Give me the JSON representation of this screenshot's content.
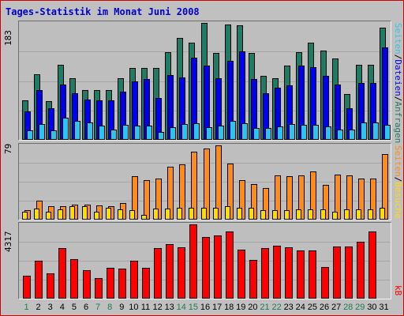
{
  "title": "Tages-Statistik im Monat Juni 2008",
  "colors": {
    "title": "#0000cc",
    "anfragen": "#1e7c64",
    "dateien": "#0000ee",
    "seiten": "#2ec4f0",
    "besuche": "#ffdd00",
    "besuche_seiten": "#ff8c1a",
    "kb": "#ff0000",
    "weekend_day": "#1e7c50",
    "weekday": "#000000"
  },
  "top_panel": {
    "max_label": "183",
    "legend": {
      "seiten": "Seiten",
      "slash1": "/",
      "dateien": "Dateien",
      "slash2": "/",
      "anfragen": "Anfragen"
    }
  },
  "mid_panel": {
    "max_label": "79",
    "legend": {
      "seiten": "Seiten",
      "slash": "/",
      "besuche": "Besuche"
    }
  },
  "bottom_panel": {
    "max_label": "4317",
    "legend": {
      "kb": "kB"
    }
  },
  "days": [
    "1",
    "2",
    "3",
    "4",
    "5",
    "6",
    "7",
    "8",
    "9",
    "10",
    "11",
    "12",
    "13",
    "14",
    "15",
    "16",
    "17",
    "18",
    "19",
    "20",
    "21",
    "22",
    "23",
    "24",
    "25",
    "26",
    "27",
    "28",
    "29",
    "30",
    "31"
  ],
  "weekend_days": [
    1,
    7,
    8,
    14,
    15,
    21,
    22,
    28,
    29
  ],
  "chart_data": [
    {
      "type": "bar",
      "ylim": [
        0,
        183
      ],
      "categories": [
        "1",
        "2",
        "3",
        "4",
        "5",
        "6",
        "7",
        "8",
        "9",
        "10",
        "11",
        "12",
        "13",
        "14",
        "15",
        "16",
        "17",
        "18",
        "19",
        "20",
        "21",
        "22",
        "23",
        "24",
        "25",
        "26",
        "27",
        "28",
        "29",
        "30",
        "31"
      ],
      "series": [
        {
          "name": "Anfragen",
          "values": [
            62,
            103,
            60,
            118,
            97,
            78,
            78,
            78,
            97,
            113,
            113,
            113,
            137,
            160,
            152,
            183,
            136,
            180,
            179,
            136,
            100,
            97,
            116,
            137,
            152,
            140,
            127,
            72,
            118,
            118,
            176
          ]
        },
        {
          "name": "Dateien",
          "values": [
            45,
            78,
            50,
            87,
            73,
            63,
            62,
            62,
            75,
            92,
            95,
            65,
            101,
            98,
            128,
            116,
            97,
            124,
            138,
            95,
            73,
            82,
            85,
            116,
            114,
            100,
            86,
            49,
            89,
            89,
            145
          ]
        },
        {
          "name": "Seiten",
          "values": [
            15,
            25,
            15,
            35,
            30,
            27,
            22,
            16,
            23,
            22,
            22,
            12,
            20,
            25,
            26,
            20,
            22,
            30,
            26,
            19,
            18,
            21,
            25,
            24,
            24,
            21,
            16,
            16,
            27,
            27,
            24
          ]
        }
      ]
    },
    {
      "type": "bar",
      "ylim": [
        0,
        79
      ],
      "categories": [
        "1",
        "2",
        "3",
        "4",
        "5",
        "6",
        "7",
        "8",
        "9",
        "10",
        "11",
        "12",
        "13",
        "14",
        "15",
        "16",
        "17",
        "18",
        "19",
        "20",
        "21",
        "22",
        "23",
        "24",
        "25",
        "26",
        "27",
        "28",
        "29",
        "30",
        "31"
      ],
      "series": [
        {
          "name": "Besuche",
          "values": [
            8,
            12,
            8,
            11,
            14,
            14,
            8,
            13,
            11,
            10,
            5,
            12,
            12,
            13,
            13,
            13,
            13,
            14,
            13,
            13,
            10,
            10,
            10,
            11,
            11,
            11,
            8,
            11,
            11,
            11,
            13
          ]
        },
        {
          "name": "Seiten",
          "values": [
            10,
            20,
            14,
            14,
            16,
            16,
            15,
            14,
            18,
            46,
            42,
            44,
            56,
            59,
            72,
            76,
            79,
            60,
            42,
            38,
            34,
            47,
            46,
            47,
            51,
            37,
            48,
            47,
            44,
            44,
            70
          ]
        }
      ]
    },
    {
      "type": "bar",
      "ylim": [
        0,
        4317
      ],
      "categories": [
        "1",
        "2",
        "3",
        "4",
        "5",
        "6",
        "7",
        "8",
        "9",
        "10",
        "11",
        "12",
        "13",
        "14",
        "15",
        "16",
        "17",
        "18",
        "19",
        "20",
        "21",
        "22",
        "23",
        "24",
        "25",
        "26",
        "27",
        "28",
        "29",
        "30",
        "31"
      ],
      "series": [
        {
          "name": "kB",
          "values": [
            1340,
            2220,
            1460,
            2930,
            2290,
            1660,
            1200,
            1770,
            1760,
            2210,
            1770,
            2950,
            3180,
            2990,
            4317,
            3560,
            3690,
            3890,
            2870,
            2250,
            2940,
            3090,
            2990,
            2820,
            2810,
            1850,
            3050,
            3050,
            3310,
            3920,
            0
          ]
        }
      ]
    }
  ]
}
